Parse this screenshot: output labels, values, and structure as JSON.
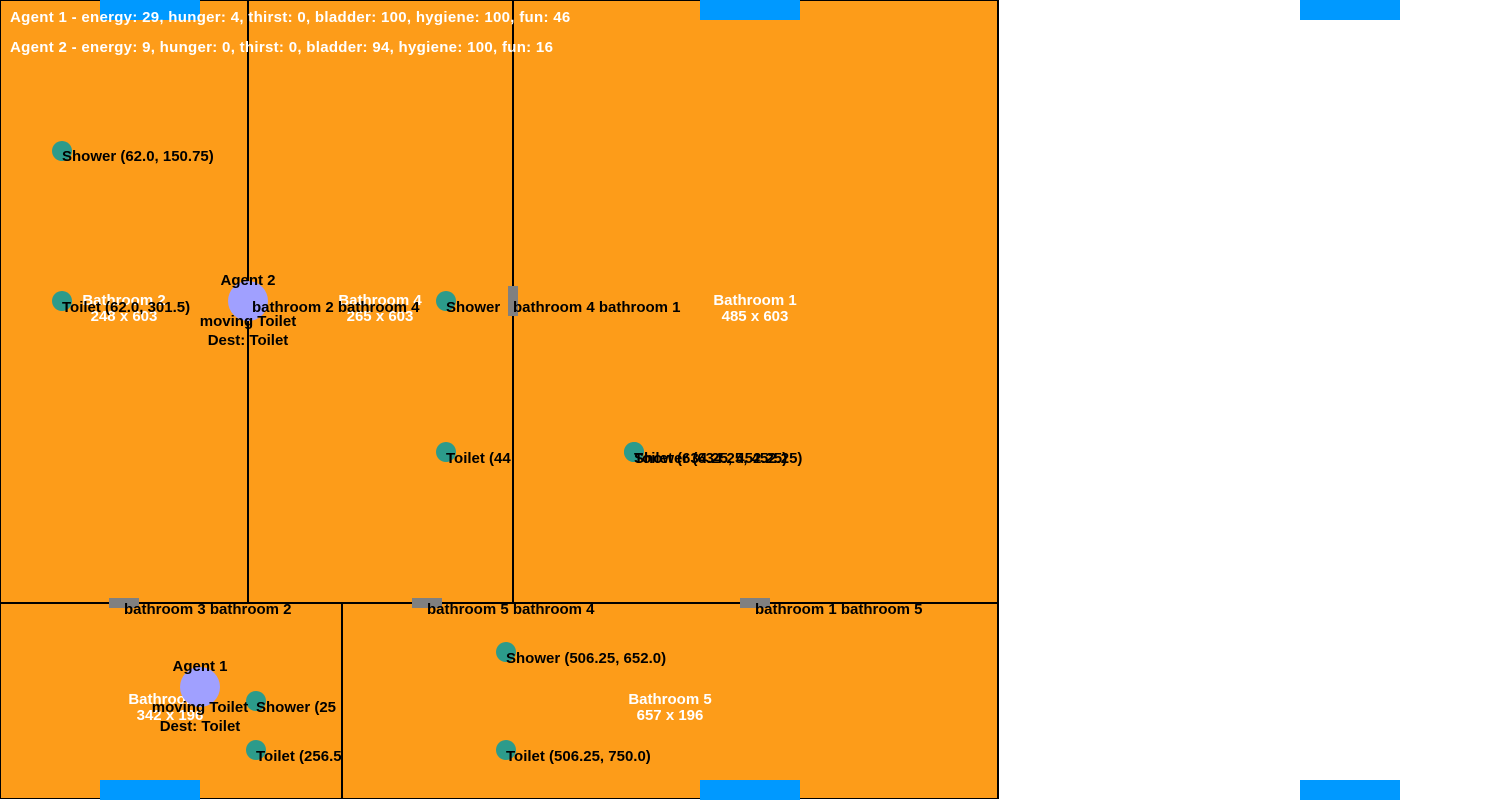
{
  "status": {
    "agent1": "Agent 1 - energy: 29, hunger: 4, thirst: 0, bladder: 100, hygiene: 100, fun: 46",
    "agent2": "Agent 2 - energy: 9, hunger: 0, thirst: 0, bladder: 94, hygiene: 100, fun: 16"
  },
  "rooms": {
    "bathroom1": {
      "name": "Bathroom 1",
      "size": "485 x 603"
    },
    "bathroom2": {
      "name": "Bathroom 2",
      "size": "248 x 603"
    },
    "bathroom3": {
      "name": "Bathroom 3",
      "size": "342 x 196"
    },
    "bathroom4": {
      "name": "Bathroom 4",
      "size": "265 x 603"
    },
    "bathroom5": {
      "name": "Bathroom 5",
      "size": "657 x 196"
    }
  },
  "doors": {
    "d1": "bathroom 2 bathroom 4",
    "d2": "bathroom 4 bathroom 1",
    "d3": "bathroom 3 bathroom 2",
    "d4": "bathroom 5 bathroom 4",
    "d5": "bathroom 1 bathroom 5"
  },
  "objects": {
    "b2_shower": "Shower (62.0, 150.75)",
    "b2_toilet": "Toilet (62.0, 301.5)",
    "b4_shower": "Shower",
    "b4_toilet": "Toilet (44",
    "b1_shower": "Shower (634.25, 452.25)",
    "b1_toilet": "Toilet (634.25, 452.25)",
    "b3_shower": "Shower (25",
    "b3_toilet": "Toilet (256.5",
    "b5_shower": "Shower (506.25, 652.0)",
    "b5_toilet": "Toilet (506.25, 750.0)"
  },
  "agents": {
    "agent1": {
      "name": "Agent 1",
      "state": "moving Toilet",
      "dest": "Dest: Toilet"
    },
    "agent2": {
      "name": "Agent 2",
      "state": "moving Toilet",
      "dest": "Dest: Toilet"
    }
  },
  "colors": {
    "floor": "#fd9c19",
    "window": "#0099ff",
    "door": "#808080",
    "object": "#2c9b8b",
    "agent": "#a0a0ff"
  }
}
